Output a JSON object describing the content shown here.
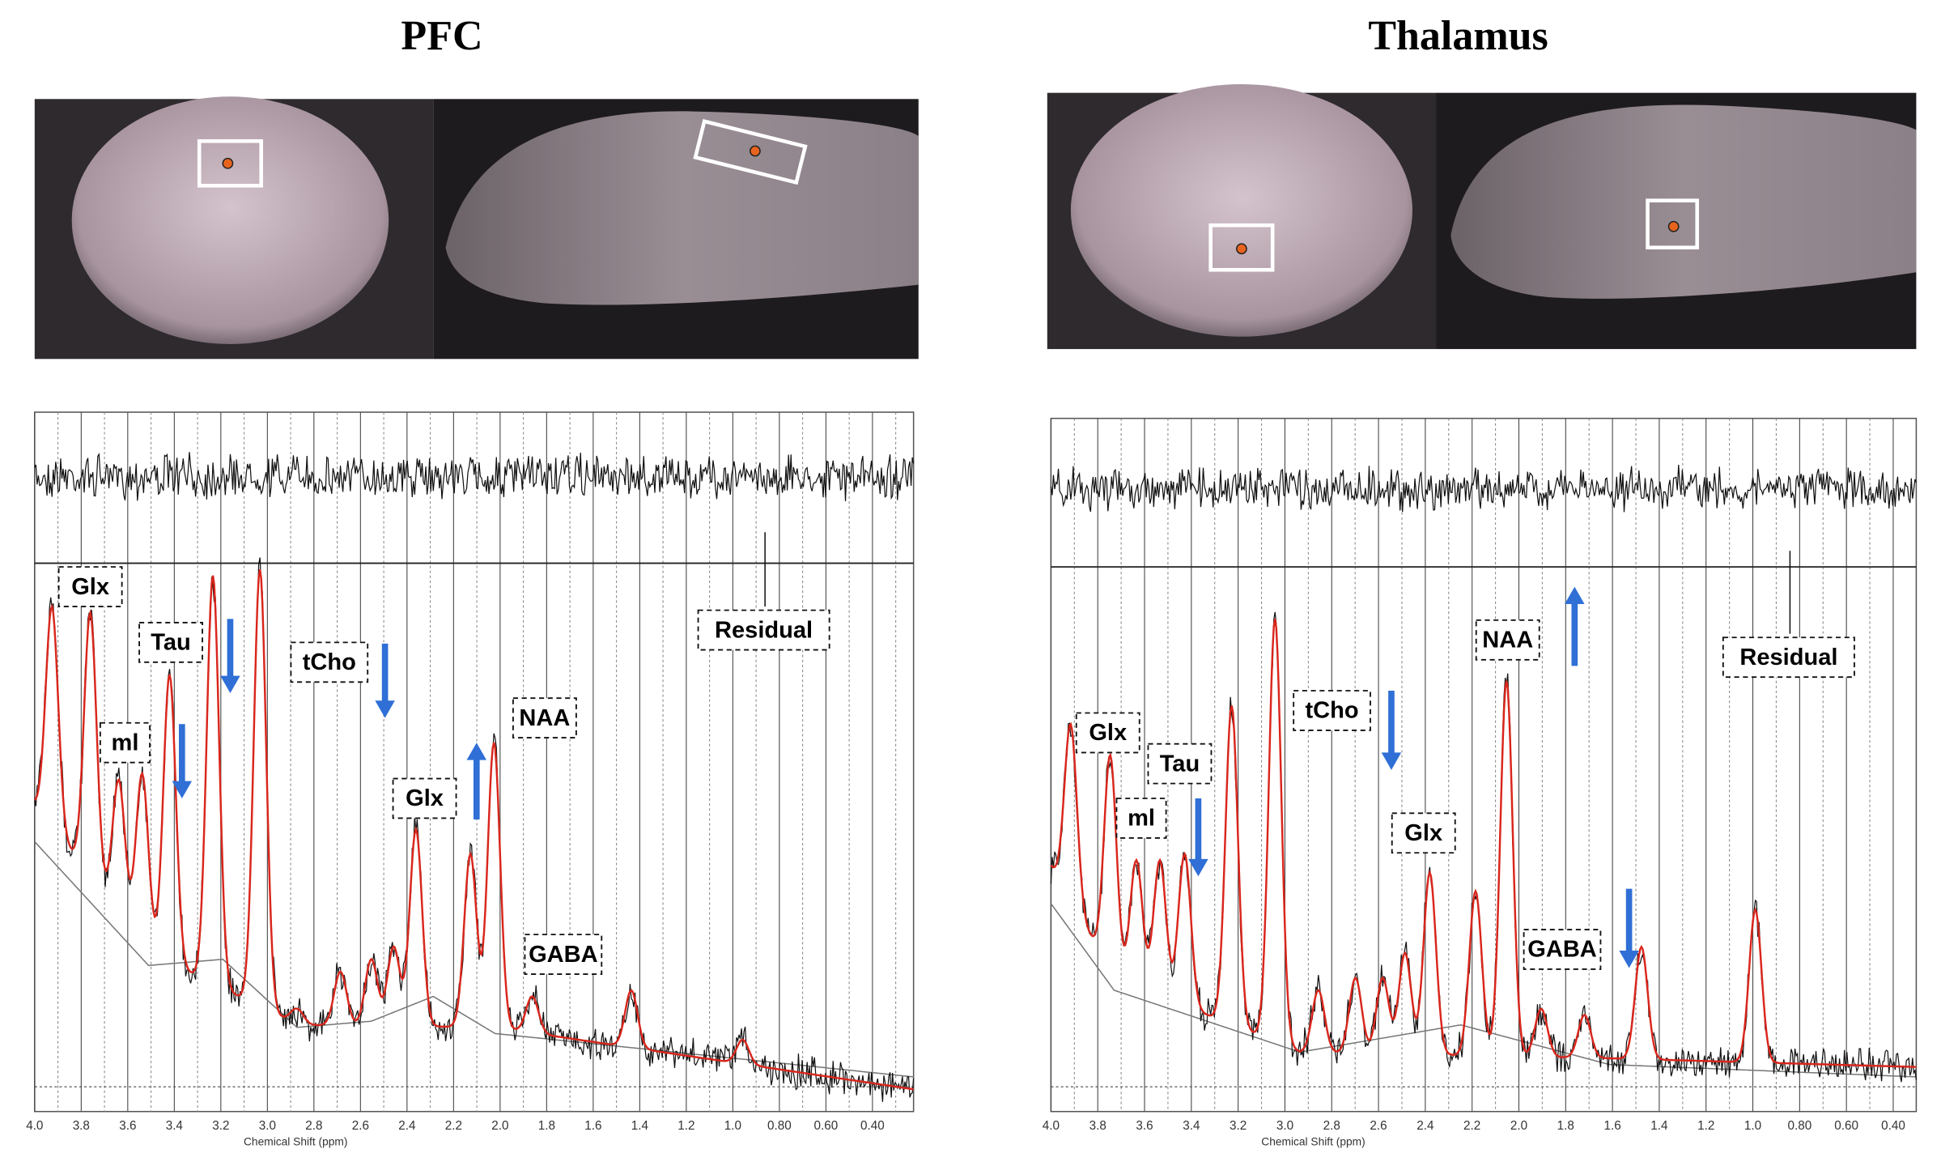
{
  "panels": [
    {
      "title": "PFC",
      "labels": [
        "Glx",
        "Tau",
        "tCho",
        "ml",
        "Glx",
        "NAA",
        "GABA"
      ],
      "residual": "Residual",
      "x_ticks": [
        "4.0",
        "3.8",
        "3.6",
        "3.4",
        "3.2",
        "3.0",
        "2.8",
        "2.6",
        "2.4",
        "2.2",
        "2.0",
        "1.8",
        "1.6",
        "1.4",
        "1.2",
        "1.0",
        "0.80",
        "0.60",
        "0.40"
      ],
      "x_label": "Chemical Shift (ppm)"
    },
    {
      "title": "Thalamus",
      "labels": [
        "Glx",
        "Tau",
        "ml",
        "tCho",
        "Glx",
        "NAA",
        "GABA"
      ],
      "residual": "Residual",
      "x_ticks": [
        "4.0",
        "3.8",
        "3.6",
        "3.4",
        "3.2",
        "3.0",
        "2.8",
        "2.6",
        "2.4",
        "2.2",
        "2.0",
        "1.8",
        "1.6",
        "1.4",
        "1.2",
        "1.0",
        "0.80",
        "0.60",
        "0.40"
      ],
      "x_label": "Chemical Shift (ppm)"
    }
  ]
}
